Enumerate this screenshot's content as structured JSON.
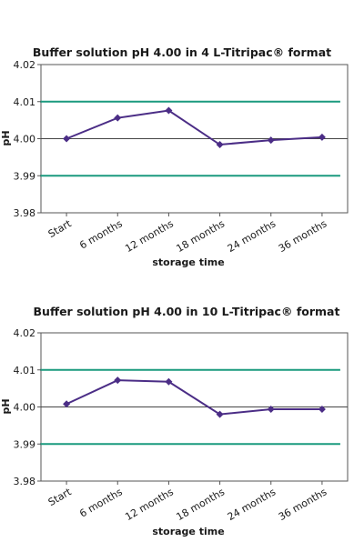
{
  "chart_data": [
    {
      "type": "line",
      "title": "Buffer solution pH 4.00 in 4 L-Titripac® format",
      "xlabel": "storage time",
      "ylabel": "pH",
      "ylim": [
        3.98,
        4.02
      ],
      "yticks": [
        "4.02",
        "4.01",
        "4.00",
        "3.99",
        "3.98"
      ],
      "categories": [
        "Start",
        "6 months",
        "12 months",
        "18 months",
        "24 months",
        "36 months"
      ],
      "series": [
        {
          "values": [
            4.0,
            4.0056,
            4.0076,
            3.9984,
            3.9996,
            4.0004
          ],
          "color": "#4b2d86"
        }
      ],
      "reference_lines": [
        {
          "value": 4.01,
          "color": "#1a9a7e"
        },
        {
          "value": 4.0,
          "color": "#444444"
        },
        {
          "value": 3.99,
          "color": "#1a9a7e"
        }
      ],
      "grid": true
    },
    {
      "type": "line",
      "title": "Buffer solution pH 4.00 in 10 L-Titripac® format",
      "xlabel": "storage time",
      "ylabel": "pH",
      "ylim": [
        3.98,
        4.02
      ],
      "yticks": [
        "4.02",
        "4.01",
        "4.00",
        "3.99",
        "3.98"
      ],
      "categories": [
        "Start",
        "6 months",
        "12 months",
        "18 months",
        "24 months",
        "36 months"
      ],
      "series": [
        {
          "values": [
            4.0008,
            4.0072,
            4.0068,
            3.998,
            3.9994,
            3.9994
          ],
          "color": "#4b2d86"
        }
      ],
      "reference_lines": [
        {
          "value": 4.01,
          "color": "#1a9a7e"
        },
        {
          "value": 4.0,
          "color": "#444444"
        },
        {
          "value": 3.99,
          "color": "#1a9a7e"
        }
      ],
      "grid": true
    }
  ]
}
